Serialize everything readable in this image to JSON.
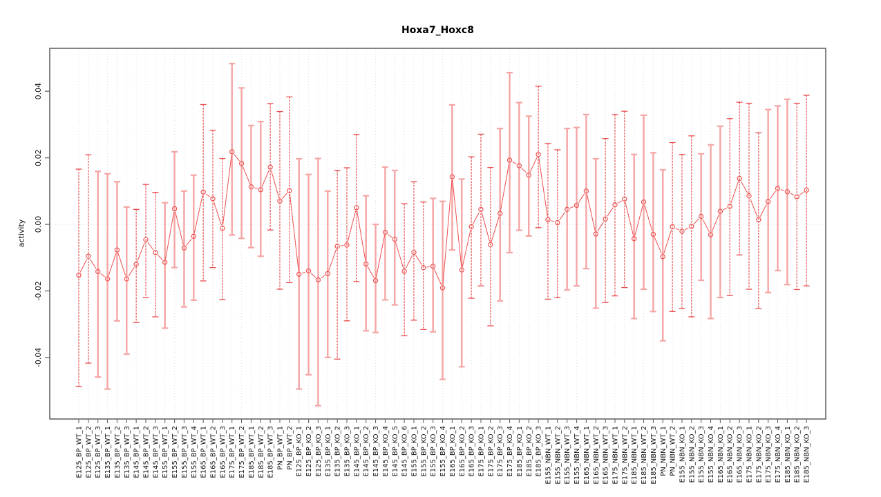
{
  "chart_data": {
    "type": "line",
    "title": "Hoxa7_Hoxc8",
    "ylabel": "activity",
    "xlabel": "",
    "ylim": [
      -0.0585,
      0.0529
    ],
    "yticks": [
      -0.04,
      -0.02,
      0,
      0.02,
      0.04
    ],
    "ytick_labels": [
      "-0.04",
      "-0.02",
      "0.00",
      "0.02",
      "0.04"
    ],
    "legend": "none",
    "grid": "vertical dotted gridline per category; dotted horizontal line at y=0",
    "marker": "open-circle",
    "error_bars": true,
    "categories": [
      "E125_BP_WT_1",
      "E125_BP_WT_2",
      "E125_BP_WT_3",
      "E135_BP_WT_1",
      "E135_BP_WT_2",
      "E135_BP_WT_3",
      "E145_BP_WT_1",
      "E145_BP_WT_2",
      "E145_BP_WT_3",
      "E155_BP_WT_1",
      "E155_BP_WT_2",
      "E155_BP_WT_3",
      "E155_BP_WT_4",
      "E165_BP_WT_1",
      "E165_BP_WT_2",
      "E165_BP_WT_3",
      "E175_BP_WT_1",
      "E175_BP_WT_2",
      "E185_BP_WT_1",
      "E185_BP_WT_2",
      "E185_BP_WT_3",
      "PN_BP_WT_1",
      "PN_BP_WT_2",
      "E125_BP_KO_1",
      "E125_BP_KO_2",
      "E125_BP_KO_3",
      "E135_BP_KO_1",
      "E135_BP_KO_2",
      "E135_BP_KO_3",
      "E145_BP_KO_1",
      "E145_BP_KO_2",
      "E145_BP_KO_3",
      "E145_BP_KO_4",
      "E145_BP_KO_5",
      "E145_BP_KO_6",
      "E155_BP_KO_1",
      "E155_BP_KO_2",
      "E155_BP_KO_3",
      "E155_BP_KO_4",
      "E165_BP_KO_1",
      "E165_BP_KO_2",
      "E165_BP_KO_3",
      "E175_BP_KO_1",
      "E175_BP_KO_2",
      "E175_BP_KO_3",
      "E175_BP_KO_4",
      "E185_BP_KO_1",
      "E185_BP_KO_2",
      "E185_BP_KO_3",
      "E155_NBN_WT_1",
      "E155_NBN_WT_2",
      "E155_NBN_WT_3",
      "E155_NBN_WT_4",
      "E165_NBN_WT_1",
      "E165_NBN_WT_2",
      "E165_NBN_WT_3",
      "E175_NBN_WT_1",
      "E175_NBN_WT_2",
      "E185_NBN_WT_1",
      "E185_NBN_WT_2",
      "E185_NBN_WT_3",
      "PN_NBN_WT_1",
      "PN_NBN_WT_2",
      "E155_NBN_KO_1",
      "E155_NBN_KO_2",
      "E155_NBN_KO_3",
      "E155_NBN_KO_4",
      "E165_NBN_KO_1",
      "E165_NBN_KO_2",
      "E165_NBN_KO_3",
      "E175_NBN_KO_1",
      "E175_NBN_KO_2",
      "E175_NBN_KO_3",
      "E175_NBN_KO_4",
      "E185_NBN_KO_1",
      "E185_NBN_KO_2",
      "E185_NBN_KO_3"
    ],
    "series": [
      {
        "name": "activity",
        "values": [
          -0.0153,
          -0.0096,
          -0.0142,
          -0.0164,
          -0.0077,
          -0.0164,
          -0.012,
          -0.0046,
          -0.0085,
          -0.0114,
          0.0047,
          -0.0071,
          -0.0036,
          0.0097,
          0.0077,
          -0.0012,
          0.0218,
          0.0183,
          0.0113,
          0.0104,
          0.0172,
          0.007,
          0.0101,
          -0.015,
          -0.014,
          -0.0167,
          -0.0148,
          -0.0066,
          -0.0062,
          0.005,
          -0.0119,
          -0.0169,
          -0.0024,
          -0.0045,
          -0.0141,
          -0.0084,
          -0.013,
          -0.0126,
          -0.0191,
          0.0143,
          -0.0137,
          -0.0007,
          0.0045,
          -0.0061,
          0.0033,
          0.0193,
          0.0176,
          0.0148,
          0.021,
          0.0014,
          0.0005,
          0.0045,
          0.0057,
          0.01,
          -0.0029,
          0.0016,
          0.0059,
          0.0076,
          -0.0043,
          0.0067,
          -0.003,
          -0.0097,
          -0.0007,
          -0.0021,
          -0.0006,
          0.0024,
          -0.0031,
          0.0039,
          0.0054,
          0.0138,
          0.0086,
          0.0014,
          0.0069,
          0.0108,
          0.0098,
          0.0083,
          0.0103
        ],
        "error_low": [
          -0.0487,
          -0.0417,
          -0.0459,
          -0.0495,
          -0.029,
          -0.039,
          -0.0295,
          -0.022,
          -0.0278,
          -0.0312,
          -0.013,
          -0.0248,
          -0.0228,
          -0.017,
          -0.013,
          -0.0226,
          -0.0032,
          -0.0042,
          -0.007,
          -0.0096,
          -0.0017,
          -0.0195,
          -0.0175,
          -0.0495,
          -0.0452,
          -0.0545,
          -0.04,
          -0.0405,
          -0.029,
          -0.0172,
          -0.032,
          -0.0325,
          -0.0227,
          -0.0242,
          -0.0335,
          -0.0288,
          -0.0316,
          -0.0323,
          -0.0466,
          -0.0077,
          -0.0428,
          -0.0222,
          -0.0185,
          -0.0305,
          -0.023,
          -0.0085,
          -0.0018,
          -0.0035,
          -0.001,
          -0.0225,
          -0.022,
          -0.0197,
          -0.0185,
          -0.0133,
          -0.0252,
          -0.0235,
          -0.0215,
          -0.019,
          -0.0283,
          -0.0195,
          -0.0262,
          -0.035,
          -0.0262,
          -0.0253,
          -0.0278,
          -0.0168,
          -0.0283,
          -0.022,
          -0.0214,
          -0.0092,
          -0.0195,
          -0.0253,
          -0.0205,
          -0.0139,
          -0.0181,
          -0.0196,
          -0.0185
        ],
        "error_high": [
          0.0166,
          0.0209,
          0.0159,
          0.0152,
          0.0128,
          0.0052,
          0.0045,
          0.012,
          0.0096,
          0.0065,
          0.0218,
          0.01,
          0.0148,
          0.036,
          0.0283,
          0.0198,
          0.0483,
          0.041,
          0.0297,
          0.0309,
          0.0363,
          0.0339,
          0.0383,
          0.0197,
          0.015,
          0.0198,
          0.01,
          0.0162,
          0.017,
          0.027,
          0.0086,
          0.0,
          0.0172,
          0.0162,
          0.0062,
          0.0128,
          0.0067,
          0.0078,
          0.0069,
          0.0359,
          0.0136,
          0.0203,
          0.0271,
          0.0171,
          0.0288,
          0.0456,
          0.0366,
          0.0325,
          0.0415,
          0.0243,
          0.0224,
          0.0288,
          0.0291,
          0.033,
          0.0197,
          0.0258,
          0.033,
          0.034,
          0.021,
          0.0328,
          0.0215,
          0.0164,
          0.0246,
          0.021,
          0.0266,
          0.0212,
          0.0239,
          0.0295,
          0.0318,
          0.0367,
          0.0364,
          0.0275,
          0.0345,
          0.0356,
          0.0376,
          0.0364,
          0.0388
        ]
      }
    ],
    "colors": {
      "point": "#ee4d4d",
      "line": "#ee4d4d",
      "errorbar_dark": "#e84b4b",
      "errorbar_light": "#f6a4a4",
      "gridline": "#dedede",
      "zero_line": "#d4d4d4",
      "frame": "#666666",
      "tick": "#666666",
      "text": "#111111"
    }
  }
}
